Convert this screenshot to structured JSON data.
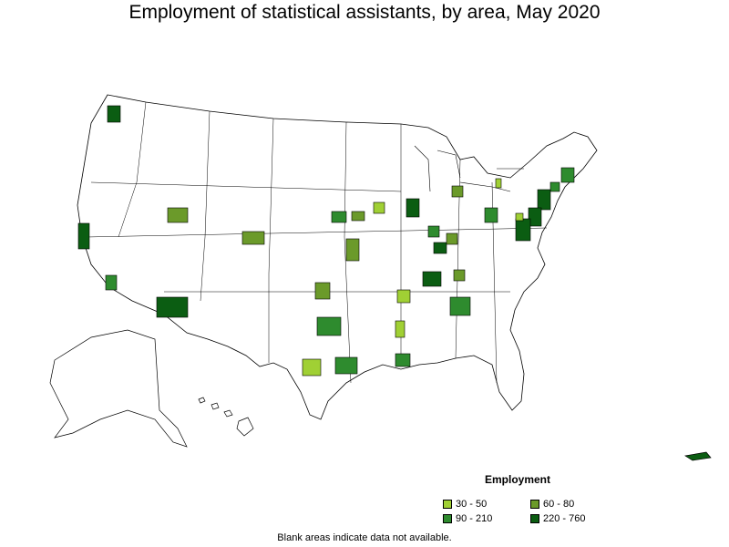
{
  "title": "Employment of statistical assistants, by area, May 2020",
  "legend": {
    "title": "Employment",
    "items": [
      {
        "label": "30 - 50",
        "color": "#a0d034"
      },
      {
        "label": "60 - 80",
        "color": "#6b9a2a"
      },
      {
        "label": "90 - 210",
        "color": "#2e8b2e"
      },
      {
        "label": "220 - 760",
        "color": "#0b5d12"
      }
    ]
  },
  "footnote": "Blank areas indicate data not available.",
  "colors": {
    "boundary": "#000000",
    "fill_blank": "#ffffff"
  }
}
